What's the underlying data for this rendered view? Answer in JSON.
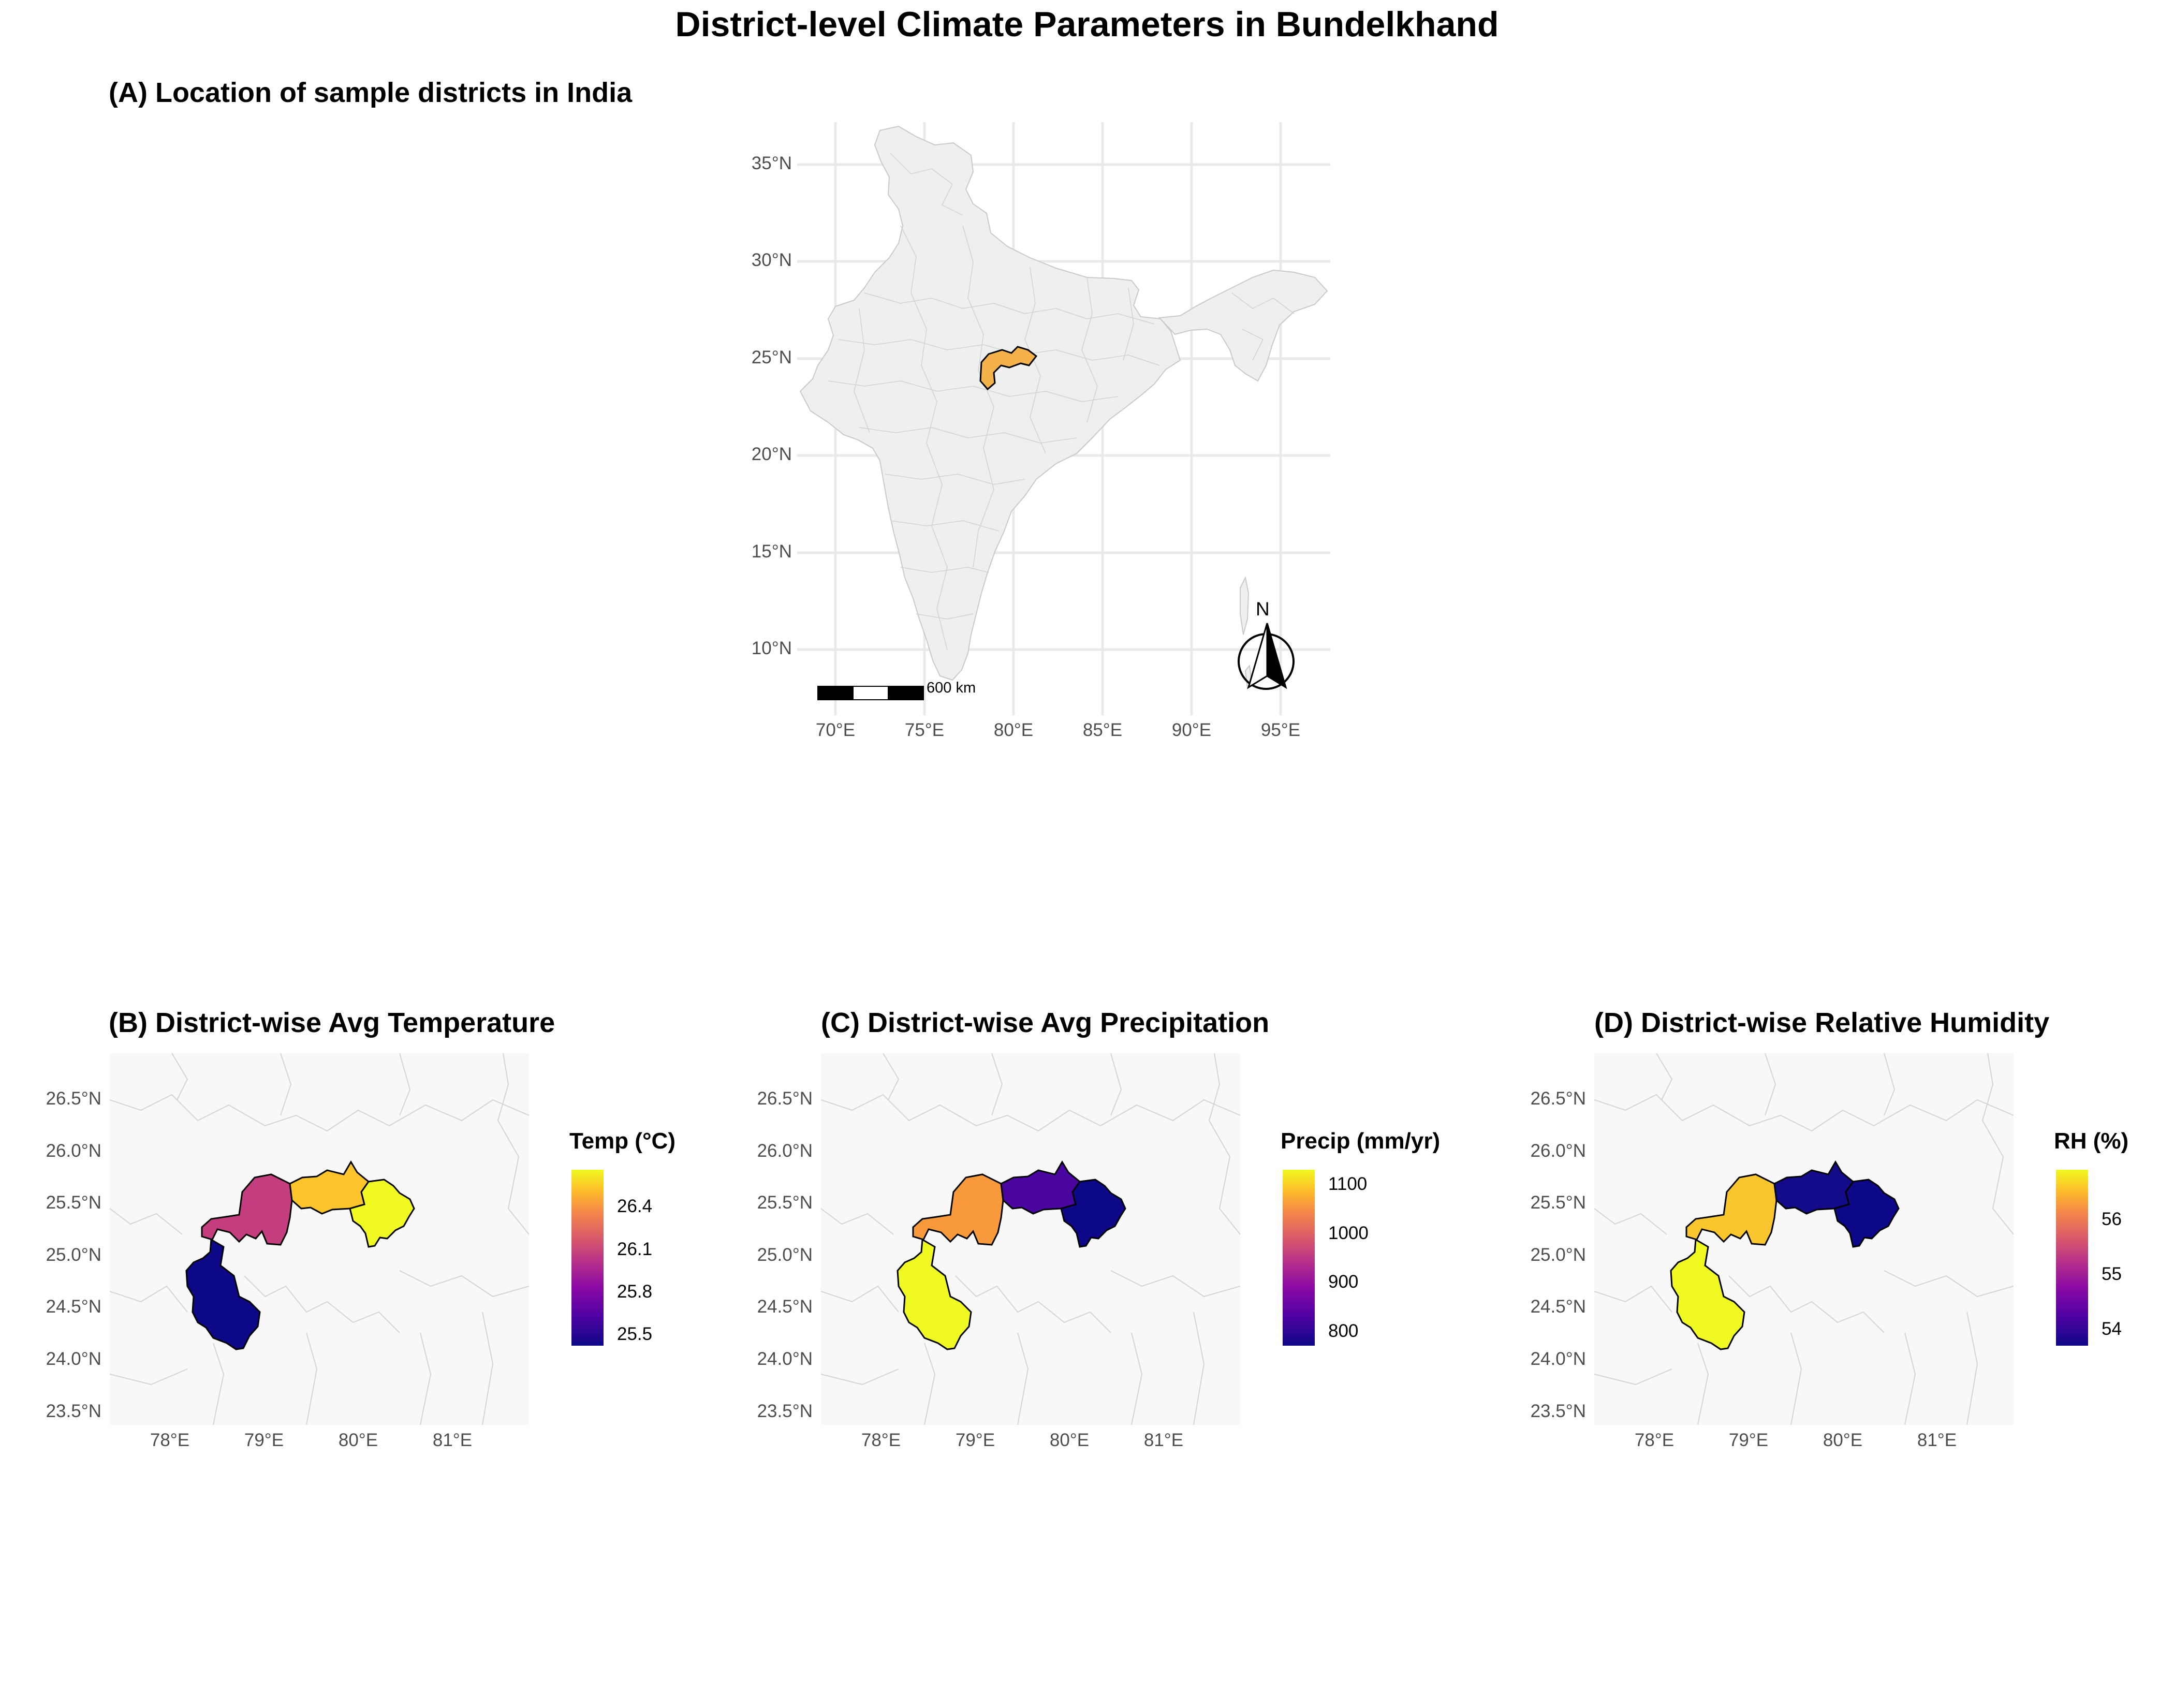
{
  "title": "District-level Climate Parameters in Bundelkhand",
  "panel_a": {
    "title": "(A) Location of sample districts in India",
    "lat_ticks": [
      "35°N",
      "30°N",
      "25°N",
      "20°N",
      "15°N",
      "10°N"
    ],
    "lon_ticks": [
      "70°E",
      "75°E",
      "80°E",
      "85°E",
      "90°E",
      "95°E"
    ],
    "scale_bar_label": "600 km",
    "north_label": "N",
    "country_fill": "#efefef",
    "highlight_fill": "#f5b14a"
  },
  "lat_ticks_small": [
    "26.5°N",
    "26.0°N",
    "25.5°N",
    "25.0°N",
    "24.5°N",
    "24.0°N",
    "23.5°N"
  ],
  "lon_ticks_small": [
    "78°E",
    "79°E",
    "80°E",
    "81°E"
  ],
  "panels": [
    {
      "id": "B",
      "title": "(B) District-wise Avg Temperature",
      "legend_title": "Temp (°C)",
      "legend_ticks": [
        {
          "label": "26.4",
          "value": 26.4
        },
        {
          "label": "26.1",
          "value": 26.1
        },
        {
          "label": "25.8",
          "value": 25.8
        },
        {
          "label": "25.5",
          "value": 25.5
        }
      ],
      "legend_range": [
        25.42,
        26.66
      ],
      "district_colors": [
        "#0d0887",
        "#c43e7f",
        "#fdc42b",
        "#f0f921"
      ]
    },
    {
      "id": "C",
      "title": "(C) District-wise Avg Precipitation",
      "legend_title": "Precip (mm/yr)",
      "legend_ticks": [
        {
          "label": "1100",
          "value": 1100
        },
        {
          "label": "1000",
          "value": 1000
        },
        {
          "label": "900",
          "value": 900
        },
        {
          "label": "800",
          "value": 800
        }
      ],
      "legend_range": [
        770,
        1130
      ],
      "district_colors": [
        "#f0f921",
        "#f89a3c",
        "#4a04a0",
        "#0d0887"
      ]
    },
    {
      "id": "D",
      "title": "(D) District-wise Relative Humidity",
      "legend_title": "RH (%)",
      "legend_ticks": [
        {
          "label": "56",
          "value": 56
        },
        {
          "label": "55",
          "value": 55
        },
        {
          "label": "54",
          "value": 54
        }
      ],
      "legend_range": [
        53.7,
        56.9
      ],
      "district_colors": [
        "#f0f921",
        "#f9c62d",
        "#140b8a",
        "#0d0887"
      ]
    }
  ]
}
